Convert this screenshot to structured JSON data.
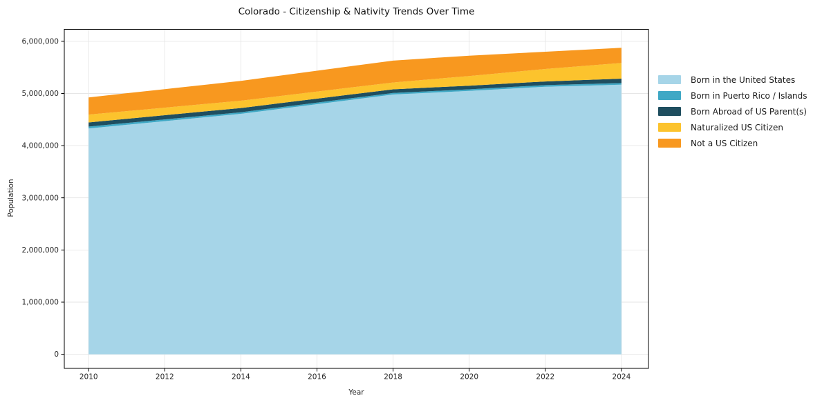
{
  "chart_data": {
    "type": "area",
    "stacked": true,
    "title": "Colorado - Citizenship & Nativity Trends Over Time",
    "xlabel": "Year",
    "ylabel": "Population",
    "grid": true,
    "legend_position": "right-outside",
    "x": [
      2010,
      2011,
      2012,
      2013,
      2014,
      2015,
      2016,
      2017,
      2018,
      2019,
      2020,
      2021,
      2022,
      2023,
      2024
    ],
    "series": [
      {
        "name": "Born in the United States",
        "color": "#a6d5e8",
        "values": [
          4330000,
          4400000,
          4470000,
          4540000,
          4610000,
          4703000,
          4795000,
          4888000,
          4980000,
          5015000,
          5050000,
          5090000,
          5130000,
          5150000,
          5170000
        ]
      },
      {
        "name": "Born in Puerto Rico / Islands",
        "color": "#3fa8c5",
        "values": [
          35000,
          34000,
          33000,
          32000,
          31000,
          30000,
          30000,
          30000,
          30000,
          30000,
          30000,
          30000,
          30000,
          30000,
          30000
        ]
      },
      {
        "name": "Born Abroad of US Parent(s)",
        "color": "#1f4e5f",
        "values": [
          80000,
          80000,
          80000,
          80000,
          80000,
          78000,
          76000,
          73000,
          70000,
          70000,
          70000,
          70000,
          70000,
          78000,
          85000
        ]
      },
      {
        "name": "Naturalized US Citizen",
        "color": "#fcc32d",
        "values": [
          150000,
          148000,
          145000,
          143000,
          140000,
          138000,
          136000,
          133000,
          130000,
          158000,
          185000,
          212000,
          240000,
          270000,
          300000
        ]
      },
      {
        "name": "Not a US Citizen",
        "color": "#f8981f",
        "values": [
          330000,
          343000,
          355000,
          368000,
          380000,
          390000,
          400000,
          410000,
          420000,
          405000,
          390000,
          360000,
          330000,
          310000,
          290000
        ]
      }
    ],
    "xlim": [
      2009.36,
      2024.71
    ],
    "ylim": [
      -270000,
      6230000
    ],
    "xticks": {
      "values": [
        2010,
        2012,
        2014,
        2016,
        2018,
        2020,
        2022,
        2024
      ],
      "labels": [
        "2010",
        "2012",
        "2014",
        "2016",
        "2018",
        "2020",
        "2022",
        "2024"
      ]
    },
    "yticks": {
      "values": [
        0,
        1000000,
        2000000,
        3000000,
        4000000,
        5000000,
        6000000
      ],
      "labels": [
        "0",
        "1,000,000",
        "2,000,000",
        "3,000,000",
        "4,000,000",
        "5,000,000",
        "6,000,000"
      ]
    },
    "style": {
      "grid_color": "#e6e6e6",
      "spine_color": "#000000",
      "tick_text_color": "#262626"
    }
  }
}
